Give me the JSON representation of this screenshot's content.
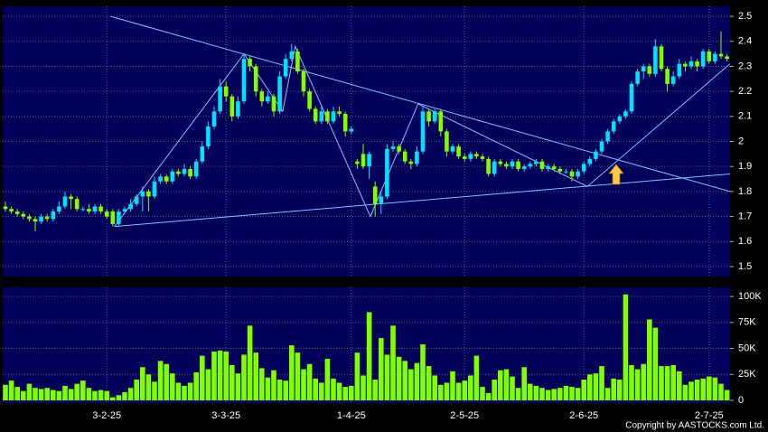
{
  "chart_data": {
    "type": "candlestick",
    "copyright": "Copyright by AASTOCKS.com Ltd.",
    "categories": [
      null,
      null,
      null,
      null,
      null,
      null,
      null,
      null,
      null,
      null,
      null,
      null,
      null,
      null,
      null,
      null,
      null,
      "3-2-25",
      null,
      null,
      null,
      null,
      null,
      null,
      null,
      null,
      null,
      null,
      null,
      null,
      null,
      null,
      null,
      null,
      null,
      null,
      null,
      "3-3-25",
      null,
      null,
      null,
      null,
      null,
      null,
      null,
      null,
      null,
      null,
      null,
      null,
      null,
      null,
      null,
      null,
      null,
      null,
      null,
      null,
      "1-4-25",
      null,
      null,
      null,
      null,
      null,
      null,
      null,
      null,
      null,
      null,
      null,
      null,
      null,
      null,
      null,
      null,
      null,
      null,
      "2-5-25",
      null,
      null,
      null,
      null,
      null,
      null,
      null,
      null,
      null,
      null,
      null,
      null,
      null,
      null,
      null,
      null,
      null,
      null,
      null,
      "2-6-25",
      null,
      null,
      null,
      null,
      null,
      null,
      null,
      null,
      null,
      null,
      null,
      null,
      null,
      null,
      null,
      null,
      null,
      null,
      null,
      null,
      "2-7-25",
      null,
      null,
      null
    ],
    "ohlc": [
      [
        1.74,
        1.76,
        1.72,
        1.73
      ],
      [
        1.73,
        1.74,
        1.71,
        1.72
      ],
      [
        1.72,
        1.73,
        1.7,
        1.71
      ],
      [
        1.71,
        1.72,
        1.69,
        1.7
      ],
      [
        1.7,
        1.71,
        1.68,
        1.69
      ],
      [
        1.69,
        1.7,
        1.64,
        1.68
      ],
      [
        1.68,
        1.71,
        1.67,
        1.7
      ],
      [
        1.7,
        1.71,
        1.68,
        1.69
      ],
      [
        1.69,
        1.73,
        1.68,
        1.72
      ],
      [
        1.72,
        1.76,
        1.71,
        1.74
      ],
      [
        1.74,
        1.8,
        1.73,
        1.78
      ],
      [
        1.78,
        1.79,
        1.73,
        1.77
      ],
      [
        1.77,
        1.78,
        1.72,
        1.73
      ],
      [
        1.73,
        1.74,
        1.72,
        1.73
      ],
      [
        1.73,
        1.75,
        1.71,
        1.72
      ],
      [
        1.72,
        1.75,
        1.71,
        1.74
      ],
      [
        1.74,
        1.75,
        1.71,
        1.72
      ],
      [
        1.72,
        1.73,
        1.69,
        1.7
      ],
      [
        1.72,
        1.73,
        1.66,
        1.67
      ],
      [
        1.67,
        1.73,
        1.66,
        1.72
      ],
      [
        1.72,
        1.74,
        1.71,
        1.73
      ],
      [
        1.73,
        1.77,
        1.72,
        1.75
      ],
      [
        1.75,
        1.79,
        1.74,
        1.78
      ],
      [
        1.78,
        1.82,
        1.72,
        1.8
      ],
      [
        1.8,
        1.81,
        1.72,
        1.78
      ],
      [
        1.78,
        1.86,
        1.77,
        1.84
      ],
      [
        1.84,
        1.87,
        1.83,
        1.86
      ],
      [
        1.86,
        1.87,
        1.83,
        1.84
      ],
      [
        1.84,
        1.89,
        1.83,
        1.88
      ],
      [
        1.88,
        1.89,
        1.86,
        1.87
      ],
      [
        1.87,
        1.91,
        1.86,
        1.89
      ],
      [
        1.89,
        1.9,
        1.85,
        1.86
      ],
      [
        1.86,
        1.93,
        1.85,
        1.92
      ],
      [
        1.92,
        2.0,
        1.91,
        1.98
      ],
      [
        1.98,
        2.08,
        1.97,
        2.06
      ],
      [
        2.06,
        2.14,
        2.05,
        2.12
      ],
      [
        2.12,
        2.25,
        2.11,
        2.22
      ],
      [
        2.22,
        2.24,
        2.16,
        2.18
      ],
      [
        2.18,
        2.19,
        2.08,
        2.1
      ],
      [
        2.1,
        2.18,
        2.09,
        2.16
      ],
      [
        2.16,
        2.35,
        2.15,
        2.33
      ],
      [
        2.33,
        2.34,
        2.28,
        2.3
      ],
      [
        2.3,
        2.31,
        2.18,
        2.2
      ],
      [
        2.2,
        2.21,
        2.14,
        2.16
      ],
      [
        2.16,
        2.2,
        2.15,
        2.18
      ],
      [
        2.18,
        2.19,
        2.1,
        2.12
      ],
      [
        2.12,
        2.28,
        2.11,
        2.26
      ],
      [
        2.26,
        2.35,
        2.25,
        2.33
      ],
      [
        2.33,
        2.39,
        2.32,
        2.36
      ],
      [
        2.36,
        2.37,
        2.27,
        2.28
      ],
      [
        2.28,
        2.29,
        2.18,
        2.2
      ],
      [
        2.2,
        2.21,
        2.12,
        2.13
      ],
      [
        2.13,
        2.14,
        2.07,
        2.08
      ],
      [
        2.08,
        2.14,
        2.07,
        2.12
      ],
      [
        2.12,
        2.13,
        2.07,
        2.08
      ],
      [
        2.08,
        2.14,
        2.07,
        2.12
      ],
      [
        2.12,
        2.14,
        2.1,
        2.11
      ],
      [
        2.11,
        2.12,
        2.02,
        2.04
      ],
      [
        2.04,
        2.06,
        2.03,
        2.05
      ],
      [
        1.92,
        1.93,
        1.89,
        1.91
      ],
      [
        1.95,
        1.99,
        1.89,
        1.9
      ],
      [
        1.9,
        1.96,
        1.85,
        1.95
      ],
      [
        1.82,
        1.84,
        1.7,
        1.75
      ],
      [
        1.75,
        1.8,
        1.71,
        1.78
      ],
      [
        1.78,
        1.99,
        1.77,
        1.97
      ],
      [
        1.97,
        2.0,
        1.96,
        1.98
      ],
      [
        1.98,
        1.99,
        1.95,
        1.96
      ],
      [
        1.96,
        1.97,
        1.91,
        1.92
      ],
      [
        1.92,
        1.93,
        1.89,
        1.91
      ],
      [
        1.91,
        1.98,
        1.9,
        1.96
      ],
      [
        1.96,
        2.14,
        1.95,
        2.12
      ],
      [
        2.12,
        2.13,
        2.06,
        2.08
      ],
      [
        2.08,
        2.13,
        2.07,
        2.12
      ],
      [
        2.12,
        2.13,
        2.02,
        2.04
      ],
      [
        2.04,
        2.05,
        1.94,
        1.96
      ],
      [
        1.96,
        1.99,
        1.95,
        1.98
      ],
      [
        1.98,
        1.99,
        1.93,
        1.94
      ],
      [
        1.94,
        1.95,
        1.92,
        1.93
      ],
      [
        1.93,
        1.96,
        1.92,
        1.95
      ],
      [
        1.95,
        1.96,
        1.93,
        1.94
      ],
      [
        1.94,
        1.95,
        1.92,
        1.93
      ],
      [
        1.93,
        1.94,
        1.86,
        1.87
      ],
      [
        1.87,
        1.93,
        1.86,
        1.92
      ],
      [
        1.92,
        1.93,
        1.9,
        1.91
      ],
      [
        1.91,
        1.92,
        1.89,
        1.9
      ],
      [
        1.9,
        1.93,
        1.89,
        1.92
      ],
      [
        1.92,
        1.93,
        1.88,
        1.89
      ],
      [
        1.89,
        1.91,
        1.88,
        1.9
      ],
      [
        1.9,
        1.92,
        1.89,
        1.91
      ],
      [
        1.91,
        1.93,
        1.9,
        1.92
      ],
      [
        1.92,
        1.93,
        1.88,
        1.89
      ],
      [
        1.89,
        1.91,
        1.88,
        1.9
      ],
      [
        1.9,
        1.91,
        1.88,
        1.89
      ],
      [
        1.89,
        1.9,
        1.87,
        1.88
      ],
      [
        1.88,
        1.89,
        1.87,
        1.88
      ],
      [
        1.88,
        1.89,
        1.84,
        1.86
      ],
      [
        1.86,
        1.89,
        1.85,
        1.88
      ],
      [
        1.88,
        1.92,
        1.87,
        1.91
      ],
      [
        1.91,
        1.94,
        1.9,
        1.93
      ],
      [
        1.93,
        1.97,
        1.92,
        1.96
      ],
      [
        1.96,
        2.01,
        1.95,
        2.0
      ],
      [
        2.0,
        2.05,
        1.99,
        2.04
      ],
      [
        2.04,
        2.09,
        2.03,
        2.08
      ],
      [
        2.08,
        2.11,
        2.07,
        2.1
      ],
      [
        2.1,
        2.13,
        2.09,
        2.12
      ],
      [
        2.12,
        2.24,
        2.11,
        2.23
      ],
      [
        2.23,
        2.29,
        2.22,
        2.28
      ],
      [
        2.28,
        2.31,
        2.25,
        2.3
      ],
      [
        2.3,
        2.31,
        2.26,
        2.27
      ],
      [
        2.27,
        2.41,
        2.26,
        2.38
      ],
      [
        2.38,
        2.39,
        2.28,
        2.29
      ],
      [
        2.29,
        2.3,
        2.2,
        2.23
      ],
      [
        2.23,
        2.28,
        2.22,
        2.26
      ],
      [
        2.26,
        2.33,
        2.25,
        2.31
      ],
      [
        2.31,
        2.32,
        2.28,
        2.3
      ],
      [
        2.3,
        2.34,
        2.29,
        2.32
      ],
      [
        2.32,
        2.33,
        2.28,
        2.3
      ],
      [
        2.3,
        2.37,
        2.29,
        2.36
      ],
      [
        2.36,
        2.37,
        2.31,
        2.32
      ],
      [
        2.32,
        2.36,
        2.31,
        2.35
      ],
      [
        2.35,
        2.44,
        2.33,
        2.34
      ],
      [
        2.34,
        2.35,
        2.32,
        2.33
      ]
    ],
    "volume": [
      15000,
      19000,
      13000,
      9000,
      16000,
      12000,
      11000,
      12000,
      10000,
      9000,
      14000,
      11000,
      16000,
      19000,
      12000,
      9000,
      10000,
      9000,
      3000,
      5000,
      8000,
      12000,
      20000,
      32000,
      25000,
      18000,
      38000,
      35000,
      26000,
      17000,
      14000,
      17000,
      27000,
      43000,
      30000,
      47000,
      48000,
      47000,
      34000,
      26000,
      44000,
      72000,
      46000,
      31000,
      22000,
      29000,
      20000,
      19000,
      53000,
      46000,
      30000,
      35000,
      21000,
      17000,
      40000,
      21000,
      17000,
      13000,
      14000,
      46000,
      24000,
      85000,
      20000,
      60000,
      44000,
      72000,
      42000,
      38000,
      30000,
      36000,
      54000,
      33000,
      24000,
      15000,
      17000,
      28000,
      17000,
      19000,
      24000,
      43000,
      13000,
      7000,
      20000,
      29000,
      30000,
      23000,
      12000,
      32000,
      16000,
      14000,
      12000,
      10000,
      11000,
      12000,
      14000,
      13000,
      12000,
      20000,
      25000,
      26000,
      33000,
      12000,
      21000,
      20000,
      102000,
      34000,
      30000,
      35000,
      78000,
      70000,
      33000,
      33000,
      34000,
      28000,
      15000,
      18000,
      20000,
      21000,
      23000,
      22000,
      16000,
      10000
    ],
    "up_color": "#00e0ff",
    "down_color": "#80ff00",
    "volume_color": "#80ff00",
    "line_color": "#7fc4ff",
    "ylim": [
      1.46,
      2.54
    ],
    "yticks": [
      1.5,
      1.6,
      1.7,
      1.8,
      1.9,
      2,
      2.1,
      2.2,
      2.3,
      2.4,
      2.5
    ],
    "y2lim": [
      -2600,
      108800
    ],
    "y2ticks": [
      0,
      {
        "value": 25000,
        "label": "25K"
      },
      {
        "value": 50000,
        "label": "50K"
      },
      {
        "value": 75000,
        "label": "75K"
      },
      {
        "value": 100000,
        "label": "100K"
      }
    ],
    "grid": true,
    "trendlines": [
      [
        [
          17.6,
          2.5
        ],
        [
          121.5,
          1.8
        ]
      ],
      [
        [
          18.3,
          1.66
        ],
        [
          121.5,
          1.87
        ]
      ],
      [
        [
          18.3,
          1.66
        ],
        [
          40,
          2.35
        ],
        [
          46.5,
          2.12
        ],
        [
          48.6,
          2.38
        ],
        [
          61.2,
          1.7
        ],
        [
          69.2,
          2.15
        ],
        [
          97.6,
          1.82
        ],
        [
          121.5,
          2.31
        ]
      ]
    ]
  }
}
